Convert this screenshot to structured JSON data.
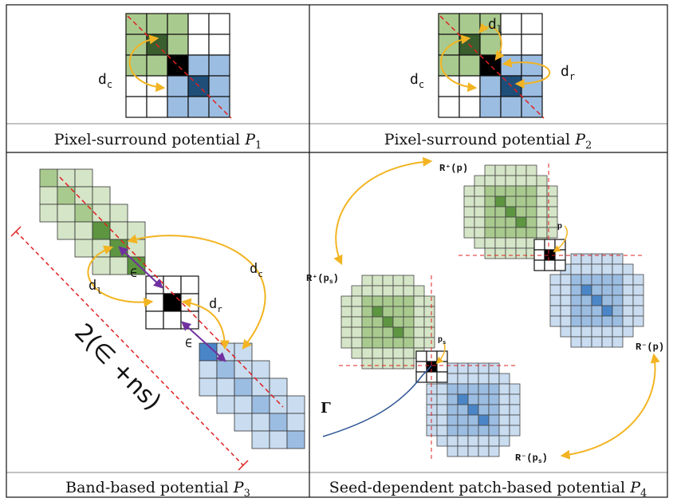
{
  "panels": [
    {
      "id": "p1",
      "caption": "Pixel-surround potential ",
      "symbol": "P",
      "subscript": "1",
      "labels": {
        "dc": "d",
        "dc_sub": "c"
      }
    },
    {
      "id": "p2",
      "caption": "Pixel-surround potential ",
      "symbol": "P",
      "subscript": "2",
      "labels": {
        "dc": "d",
        "dc_sub": "c",
        "dl": "d",
        "dl_sub": "l",
        "dr": "d",
        "dr_sub": "r"
      }
    },
    {
      "id": "p3",
      "caption": "Band-based potential ",
      "symbol": "P",
      "subscript": "3",
      "labels": {
        "dc": "d",
        "dc_sub": "c",
        "dl": "d",
        "dl_sub": "l",
        "dr": "d",
        "dr_sub": "r",
        "eps_top": "∈",
        "eps_bottom": "∈",
        "band_width": "2(∈ +ns)"
      }
    },
    {
      "id": "p4",
      "caption": "Seed-dependent patch-based potential ",
      "symbol": "P",
      "subscript": "4",
      "labels": {
        "r_plus_p": "R⁺(p)",
        "r_plus_ps": "R⁺(p",
        "r_plus_ps_sub": "s",
        "r_minus_p": "R⁻(p)",
        "r_minus_ps": "R⁻(p",
        "r_minus_ps_sub": "s",
        "p": "p",
        "ps": "p",
        "ps_sub": "s",
        "gamma": "Γ"
      }
    }
  ],
  "colors": {
    "green_light": "#d5e5c7",
    "green_mid": "#a9ca8e",
    "green_dark": "#5d9541",
    "green_darkest": "#3a5e2e",
    "blue_light": "#c9dcf0",
    "blue_mid": "#9cbde2",
    "blue_dark": "#4a86c7",
    "blue_darkest": "#1f4e79",
    "arrow_orange": "#f2b422",
    "arrow_purple": "#7030a0",
    "dash_red": "#e02020",
    "curve_blue": "#2f5597"
  },
  "icons": {
    "center_pixel": "black-square",
    "arrows": "curved-double-arrow"
  }
}
